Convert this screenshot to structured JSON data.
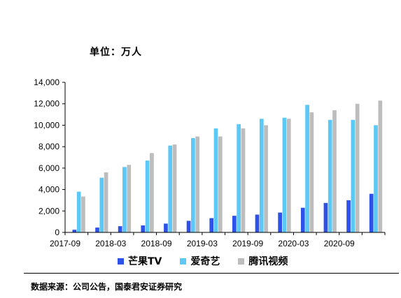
{
  "unit_label": "单位：万人",
  "source_label": "数据来源：公司公告，国泰君安证券研究",
  "chart_data": {
    "type": "bar",
    "title": "",
    "xlabel": "",
    "ylabel": "",
    "ylim": [
      0,
      14000
    ],
    "y_ticks": [
      0,
      2000,
      4000,
      6000,
      8000,
      10000,
      12000,
      14000
    ],
    "y_tick_labels": [
      "0",
      "2,000",
      "4,000",
      "6,000",
      "8,000",
      "10,000",
      "12,000",
      "14,000"
    ],
    "x_tick_labels": [
      "2017-09",
      "2018-03",
      "2018-09",
      "2019-03",
      "2019-09",
      "2020-03",
      "2020-09"
    ],
    "categories": [
      "2017-09",
      "2017-12",
      "2018-03",
      "2018-06",
      "2018-09",
      "2018-12",
      "2019-03",
      "2019-06",
      "2019-09",
      "2019-12",
      "2020-03",
      "2020-06",
      "2020-09",
      "2020-12"
    ],
    "legend_position": "bottom",
    "series": [
      {
        "name": "芒果TV",
        "color": "#2E52E8",
        "values": [
          250,
          450,
          580,
          650,
          820,
          1080,
          1330,
          1550,
          1660,
          1850,
          2300,
          2750,
          3000,
          3600
        ]
      },
      {
        "name": "爱奇艺",
        "color": "#5BC8F5",
        "values": [
          3800,
          5100,
          6100,
          6700,
          8100,
          8800,
          9700,
          10100,
          10600,
          10700,
          11900,
          10500,
          10500,
          10000
        ]
      },
      {
        "name": "腾讯视频",
        "color": "#BDBDBD",
        "values": [
          3350,
          5600,
          6300,
          7400,
          8200,
          8950,
          8950,
          9700,
          10000,
          10600,
          11200,
          11400,
          12000,
          12300
        ]
      }
    ]
  }
}
